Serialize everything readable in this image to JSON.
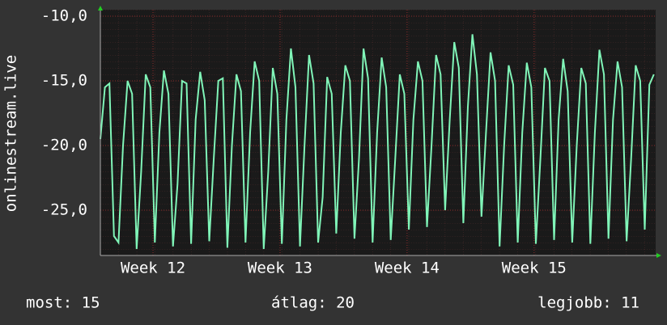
{
  "chart_data": {
    "type": "line",
    "y_label": "onlinestream.live",
    "xlim": [
      0,
      30.6
    ],
    "xticks": [
      {
        "value": 2.9,
        "label": "Week 12"
      },
      {
        "value": 9.9,
        "label": "Week 13"
      },
      {
        "value": 16.9,
        "label": "Week 14"
      },
      {
        "value": 23.9,
        "label": "Week 15"
      }
    ],
    "ylim": [
      -28.5,
      -9.5
    ],
    "yticks": [
      {
        "value": -10,
        "label": "-10,0"
      },
      {
        "value": -15,
        "label": "-15,0"
      },
      {
        "value": -20,
        "label": "-20,0"
      },
      {
        "value": -25,
        "label": "-25,0"
      }
    ],
    "grid": true,
    "x": [
      0,
      0.25,
      0.5,
      0.75,
      1,
      1.25,
      1.5,
      1.75,
      2,
      2.25,
      2.5,
      2.75,
      3,
      3.25,
      3.5,
      3.75,
      4,
      4.25,
      4.5,
      4.75,
      5,
      5.25,
      5.5,
      5.75,
      6,
      6.25,
      6.5,
      6.75,
      7,
      7.25,
      7.5,
      7.75,
      8,
      8.25,
      8.5,
      8.75,
      9,
      9.25,
      9.5,
      9.75,
      10,
      10.25,
      10.5,
      10.75,
      11,
      11.25,
      11.5,
      11.75,
      12,
      12.25,
      12.5,
      12.75,
      13,
      13.25,
      13.5,
      13.75,
      14,
      14.25,
      14.5,
      14.75,
      15,
      15.25,
      15.5,
      15.75,
      16,
      16.25,
      16.5,
      16.75,
      17,
      17.25,
      17.5,
      17.75,
      18,
      18.25,
      18.5,
      18.75,
      19,
      19.25,
      19.5,
      19.75,
      20,
      20.25,
      20.5,
      20.75,
      21,
      21.25,
      21.5,
      21.75,
      22,
      22.25,
      22.5,
      22.75,
      23,
      23.25,
      23.5,
      23.75,
      24,
      24.25,
      24.5,
      24.75,
      25,
      25.25,
      25.5,
      25.75,
      26,
      26.25,
      26.5,
      26.75,
      27,
      27.25,
      27.5,
      27.75,
      28,
      28.25,
      28.5,
      28.75,
      29,
      29.25,
      29.5,
      29.75,
      30,
      30.25,
      30.5
    ],
    "series": [
      {
        "color": "#80f5b8",
        "values": [
          -19.5,
          -15.5,
          -15.2,
          -27,
          -27.5,
          -20,
          -15,
          -16,
          -28,
          -22,
          -14.5,
          -15.5,
          -27.5,
          -19,
          -14.2,
          -16,
          -27.8,
          -23,
          -15,
          -15.2,
          -27.6,
          -18,
          -14.3,
          -16.5,
          -27.4,
          -21,
          -15,
          -14.8,
          -27.9,
          -20,
          -14.5,
          -15.8,
          -27.5,
          -19,
          -13.5,
          -15,
          -28,
          -22,
          -14,
          -16,
          -27.6,
          -18,
          -12.5,
          -15.5,
          -27.8,
          -20,
          -13,
          -15.2,
          -27.5,
          -24,
          -14.7,
          -16,
          -26.8,
          -19,
          -13.8,
          -15,
          -27.2,
          -21,
          -12.5,
          -14.8,
          -27.5,
          -19,
          -13.2,
          -15.5,
          -27.3,
          -21,
          -14.5,
          -16,
          -26.5,
          -18,
          -13.5,
          -15,
          -26.3,
          -20,
          -13,
          -14.5,
          -25,
          -18,
          -12,
          -14,
          -26,
          -17,
          -11.4,
          -14.5,
          -25.5,
          -19,
          -12.8,
          -15,
          -27.8,
          -20,
          -13.8,
          -15.3,
          -27.5,
          -19,
          -13.6,
          -15.5,
          -27.6,
          -21,
          -14,
          -15,
          -27.3,
          -18,
          -13.3,
          -15.8,
          -27.5,
          -20,
          -14,
          -15.2,
          -27.6,
          -19,
          -12.6,
          -14.5,
          -27.2,
          -18,
          -13.5,
          -15.5,
          -27.4,
          -21,
          -13.8,
          -15,
          -26.5,
          -15.3,
          -14.5
        ]
      }
    ],
    "stats": [
      "most: 15",
      "átlag: 20",
      "legjobb: 11"
    ]
  }
}
